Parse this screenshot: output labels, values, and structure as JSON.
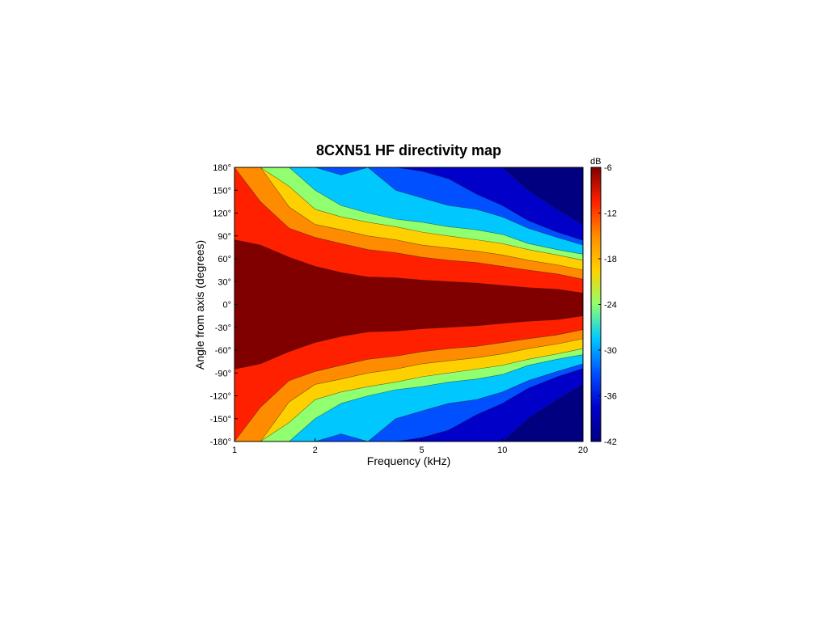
{
  "chart_data": {
    "type": "heatmap",
    "title": "8CXN51 HF directivity map",
    "xlabel": "Frequency (kHz)",
    "ylabel": "Angle from axis (degrees)",
    "x_scale": "log",
    "xlim": [
      1,
      20
    ],
    "ylim": [
      -180,
      180
    ],
    "x_ticks": [
      1,
      2,
      5,
      10,
      20
    ],
    "x_tick_labels": [
      "1",
      "2",
      "5",
      "10",
      "20"
    ],
    "y_ticks": [
      180,
      150,
      120,
      90,
      60,
      30,
      0,
      -30,
      -60,
      -90,
      -120,
      -150,
      -180
    ],
    "y_tick_labels": [
      "180°",
      "150°",
      "120°",
      "90°",
      "60°",
      "30°",
      "0°",
      "-30°",
      "-60°",
      "-90°",
      "-120°",
      "-150°",
      "-180°"
    ],
    "colorbar": {
      "unit": "dB",
      "range": [
        -42,
        -6
      ],
      "ticks": [
        -6,
        -12,
        -18,
        -24,
        -30,
        -36,
        -42
      ],
      "tick_labels": [
        "-6",
        "-12",
        "-18",
        "-24",
        "-30",
        "-36",
        "-42"
      ],
      "colormap": "jet"
    },
    "contour_levels_db": [
      -9,
      -12,
      -15,
      -18,
      -21,
      -24,
      -27,
      -30,
      -33,
      -36
    ],
    "level_colors": [
      "#000080",
      "#0000c8",
      "#0050ff",
      "#00c8ff",
      "#90ff70",
      "#ffd000",
      "#ff8c00",
      "#ff2000",
      "#800000"
    ],
    "frequencies_khz": [
      1,
      1.25,
      1.6,
      2,
      2.5,
      3.15,
      4,
      5,
      6.3,
      8,
      10,
      12.5,
      16,
      20
    ],
    "half_beamwidth_deg": {
      "-6dB": [
        85,
        78,
        62,
        50,
        42,
        36,
        35,
        32,
        30,
        28,
        25,
        22,
        20,
        15
      ],
      "-12dB": [
        180,
        135,
        100,
        88,
        80,
        72,
        68,
        62,
        58,
        55,
        50,
        45,
        40,
        33
      ],
      "-15dB": [
        180,
        180,
        128,
        105,
        98,
        90,
        85,
        78,
        74,
        70,
        65,
        58,
        52,
        45
      ],
      "-18dB": [
        180,
        180,
        155,
        125,
        115,
        108,
        102,
        95,
        90,
        85,
        80,
        72,
        65,
        58
      ],
      "-21dB": [
        180,
        180,
        180,
        150,
        130,
        120,
        112,
        108,
        102,
        98,
        92,
        80,
        72,
        66
      ],
      "-27dB": [
        180,
        180,
        180,
        180,
        170,
        180,
        150,
        140,
        130,
        125,
        115,
        100,
        88,
        78
      ],
      "-30dB": [
        180,
        180,
        180,
        180,
        180,
        180,
        180,
        175,
        165,
        145,
        130,
        110,
        95,
        84
      ],
      "-36dB": [
        180,
        180,
        180,
        180,
        180,
        180,
        180,
        180,
        180,
        180,
        180,
        150,
        125,
        105
      ]
    }
  }
}
